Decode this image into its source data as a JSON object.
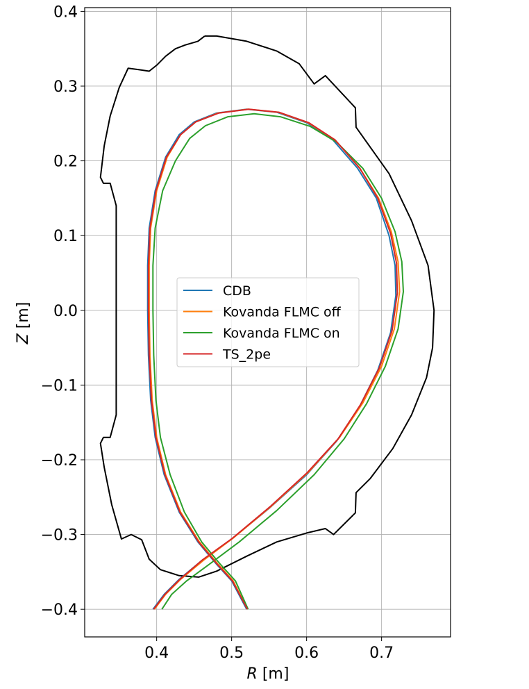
{
  "chart_data": {
    "type": "line",
    "title": "",
    "xlabel": "R [m]",
    "ylabel": "Z [m]",
    "xlabel_italic": "R",
    "xlabel_unit": " [m]",
    "ylabel_italic": "Z",
    "ylabel_unit": " [m]",
    "xlim": [
      0.304,
      0.792
    ],
    "ylim": [
      -0.437,
      0.405
    ],
    "grid": true,
    "legend_position": "center",
    "x_ticks": [
      {
        "value": 0.4,
        "label": "0.4"
      },
      {
        "value": 0.5,
        "label": "0.5"
      },
      {
        "value": 0.6,
        "label": "0.6"
      },
      {
        "value": 0.7,
        "label": "0.7"
      }
    ],
    "y_ticks": [
      {
        "value": 0.4,
        "label": "0.4"
      },
      {
        "value": 0.3,
        "label": "0.3"
      },
      {
        "value": 0.2,
        "label": "0.2"
      },
      {
        "value": 0.1,
        "label": "0.1"
      },
      {
        "value": 0.0,
        "label": "0.0"
      },
      {
        "value": -0.1,
        "label": "−0.1"
      },
      {
        "value": -0.2,
        "label": "−0.2"
      },
      {
        "value": -0.3,
        "label": "−0.3"
      },
      {
        "value": -0.4,
        "label": "−0.4"
      }
    ],
    "wall": {
      "color": "#000000",
      "points": [
        [
          0.464,
          0.367
        ],
        [
          0.48,
          0.367
        ],
        [
          0.52,
          0.36
        ],
        [
          0.56,
          0.347
        ],
        [
          0.59,
          0.33
        ],
        [
          0.61,
          0.303
        ],
        [
          0.625,
          0.314
        ],
        [
          0.665,
          0.271
        ],
        [
          0.666,
          0.245
        ],
        [
          0.71,
          0.183
        ],
        [
          0.74,
          0.12
        ],
        [
          0.762,
          0.06
        ],
        [
          0.77,
          0.0
        ],
        [
          0.768,
          -0.05
        ],
        [
          0.76,
          -0.09
        ],
        [
          0.74,
          -0.14
        ],
        [
          0.715,
          -0.185
        ],
        [
          0.685,
          -0.225
        ],
        [
          0.666,
          -0.244
        ],
        [
          0.665,
          -0.271
        ],
        [
          0.636,
          -0.3
        ],
        [
          0.625,
          -0.292
        ],
        [
          0.6,
          -0.298
        ],
        [
          0.56,
          -0.31
        ],
        [
          0.52,
          -0.329
        ],
        [
          0.48,
          -0.349
        ],
        [
          0.456,
          -0.357
        ],
        [
          0.43,
          -0.355
        ],
        [
          0.405,
          -0.347
        ],
        [
          0.39,
          -0.333
        ],
        [
          0.38,
          -0.307
        ],
        [
          0.366,
          -0.3
        ],
        [
          0.353,
          -0.306
        ],
        [
          0.34,
          -0.26
        ],
        [
          0.33,
          -0.21
        ],
        [
          0.325,
          -0.178
        ],
        [
          0.329,
          -0.17
        ],
        [
          0.338,
          -0.17
        ],
        [
          0.346,
          -0.14
        ],
        [
          0.346,
          0.14
        ],
        [
          0.338,
          0.17
        ],
        [
          0.329,
          0.17
        ],
        [
          0.325,
          0.178
        ],
        [
          0.33,
          0.22
        ],
        [
          0.338,
          0.26
        ],
        [
          0.35,
          0.298
        ],
        [
          0.362,
          0.324
        ],
        [
          0.376,
          0.322
        ],
        [
          0.39,
          0.32
        ],
        [
          0.4,
          0.328
        ],
        [
          0.412,
          0.34
        ],
        [
          0.425,
          0.35
        ],
        [
          0.438,
          0.355
        ],
        [
          0.455,
          0.36
        ],
        [
          0.464,
          0.367
        ]
      ]
    },
    "series": [
      {
        "name": "CDB",
        "color": "#1f77b4",
        "points": [
          [
            0.395,
            -0.4
          ],
          [
            0.41,
            -0.38
          ],
          [
            0.43,
            -0.36
          ],
          [
            0.46,
            -0.335
          ],
          [
            0.5,
            -0.306
          ],
          [
            0.55,
            -0.265
          ],
          [
            0.6,
            -0.22
          ],
          [
            0.64,
            -0.175
          ],
          [
            0.67,
            -0.13
          ],
          [
            0.695,
            -0.08
          ],
          [
            0.712,
            -0.03
          ],
          [
            0.719,
            0.02
          ],
          [
            0.718,
            0.06
          ],
          [
            0.71,
            0.1
          ],
          [
            0.693,
            0.15
          ],
          [
            0.668,
            0.19
          ],
          [
            0.635,
            0.228
          ],
          [
            0.6,
            0.251
          ],
          [
            0.56,
            0.265
          ],
          [
            0.52,
            0.269
          ],
          [
            0.48,
            0.264
          ],
          [
            0.45,
            0.252
          ],
          [
            0.43,
            0.235
          ],
          [
            0.412,
            0.205
          ],
          [
            0.398,
            0.16
          ],
          [
            0.39,
            0.11
          ],
          [
            0.388,
            0.06
          ],
          [
            0.388,
            0.0
          ],
          [
            0.389,
            -0.06
          ],
          [
            0.392,
            -0.12
          ],
          [
            0.398,
            -0.17
          ],
          [
            0.41,
            -0.22
          ],
          [
            0.43,
            -0.27
          ],
          [
            0.455,
            -0.31
          ],
          [
            0.48,
            -0.34
          ],
          [
            0.5,
            -0.362
          ],
          [
            0.52,
            -0.4
          ]
        ]
      },
      {
        "name": "Kovanda FLMC off",
        "color": "#ff7f0e",
        "points": [
          [
            0.397,
            -0.4
          ],
          [
            0.412,
            -0.38
          ],
          [
            0.432,
            -0.36
          ],
          [
            0.463,
            -0.334
          ],
          [
            0.503,
            -0.304
          ],
          [
            0.553,
            -0.262
          ],
          [
            0.603,
            -0.216
          ],
          [
            0.644,
            -0.17
          ],
          [
            0.675,
            -0.124
          ],
          [
            0.7,
            -0.075
          ],
          [
            0.717,
            -0.025
          ],
          [
            0.724,
            0.025
          ],
          [
            0.722,
            0.065
          ],
          [
            0.713,
            0.105
          ],
          [
            0.696,
            0.15
          ],
          [
            0.671,
            0.19
          ],
          [
            0.638,
            0.228
          ],
          [
            0.602,
            0.251
          ],
          [
            0.562,
            0.265
          ],
          [
            0.522,
            0.269
          ],
          [
            0.482,
            0.264
          ],
          [
            0.452,
            0.252
          ],
          [
            0.432,
            0.235
          ],
          [
            0.414,
            0.205
          ],
          [
            0.4,
            0.16
          ],
          [
            0.392,
            0.11
          ],
          [
            0.39,
            0.06
          ],
          [
            0.39,
            0.0
          ],
          [
            0.391,
            -0.06
          ],
          [
            0.394,
            -0.12
          ],
          [
            0.4,
            -0.17
          ],
          [
            0.412,
            -0.22
          ],
          [
            0.432,
            -0.27
          ],
          [
            0.457,
            -0.31
          ],
          [
            0.482,
            -0.34
          ],
          [
            0.502,
            -0.362
          ],
          [
            0.521,
            -0.4
          ]
        ]
      },
      {
        "name": "Kovanda FLMC on",
        "color": "#2ca02c",
        "points": [
          [
            0.407,
            -0.4
          ],
          [
            0.42,
            -0.38
          ],
          [
            0.44,
            -0.362
          ],
          [
            0.47,
            -0.34
          ],
          [
            0.51,
            -0.31
          ],
          [
            0.56,
            -0.268
          ],
          [
            0.61,
            -0.22
          ],
          [
            0.65,
            -0.172
          ],
          [
            0.68,
            -0.125
          ],
          [
            0.705,
            -0.075
          ],
          [
            0.722,
            -0.025
          ],
          [
            0.729,
            0.025
          ],
          [
            0.727,
            0.065
          ],
          [
            0.718,
            0.105
          ],
          [
            0.7,
            0.15
          ],
          [
            0.675,
            0.19
          ],
          [
            0.64,
            0.225
          ],
          [
            0.605,
            0.246
          ],
          [
            0.565,
            0.259
          ],
          [
            0.53,
            0.263
          ],
          [
            0.495,
            0.259
          ],
          [
            0.465,
            0.247
          ],
          [
            0.444,
            0.23
          ],
          [
            0.425,
            0.2
          ],
          [
            0.408,
            0.16
          ],
          [
            0.398,
            0.11
          ],
          [
            0.395,
            0.06
          ],
          [
            0.395,
            0.0
          ],
          [
            0.396,
            -0.06
          ],
          [
            0.399,
            -0.12
          ],
          [
            0.405,
            -0.17
          ],
          [
            0.418,
            -0.22
          ],
          [
            0.437,
            -0.27
          ],
          [
            0.46,
            -0.31
          ],
          [
            0.485,
            -0.34
          ],
          [
            0.505,
            -0.362
          ],
          [
            0.522,
            -0.4
          ]
        ]
      },
      {
        "name": "TS_2pe",
        "color": "#d62728",
        "points": [
          [
            0.396,
            -0.4
          ],
          [
            0.411,
            -0.38
          ],
          [
            0.431,
            -0.36
          ],
          [
            0.461,
            -0.334
          ],
          [
            0.501,
            -0.305
          ],
          [
            0.551,
            -0.263
          ],
          [
            0.601,
            -0.217
          ],
          [
            0.642,
            -0.172
          ],
          [
            0.672,
            -0.126
          ],
          [
            0.697,
            -0.077
          ],
          [
            0.714,
            -0.027
          ],
          [
            0.721,
            0.023
          ],
          [
            0.72,
            0.063
          ],
          [
            0.712,
            0.103
          ],
          [
            0.695,
            0.15
          ],
          [
            0.671,
            0.19
          ],
          [
            0.638,
            0.228
          ],
          [
            0.603,
            0.251
          ],
          [
            0.563,
            0.265
          ],
          [
            0.523,
            0.269
          ],
          [
            0.483,
            0.264
          ],
          [
            0.452,
            0.252
          ],
          [
            0.432,
            0.235
          ],
          [
            0.413,
            0.205
          ],
          [
            0.399,
            0.16
          ],
          [
            0.391,
            0.11
          ],
          [
            0.389,
            0.06
          ],
          [
            0.389,
            0.0
          ],
          [
            0.39,
            -0.06
          ],
          [
            0.393,
            -0.12
          ],
          [
            0.399,
            -0.17
          ],
          [
            0.411,
            -0.22
          ],
          [
            0.431,
            -0.27
          ],
          [
            0.456,
            -0.31
          ],
          [
            0.481,
            -0.34
          ],
          [
            0.501,
            -0.362
          ],
          [
            0.521,
            -0.4
          ]
        ]
      }
    ]
  }
}
